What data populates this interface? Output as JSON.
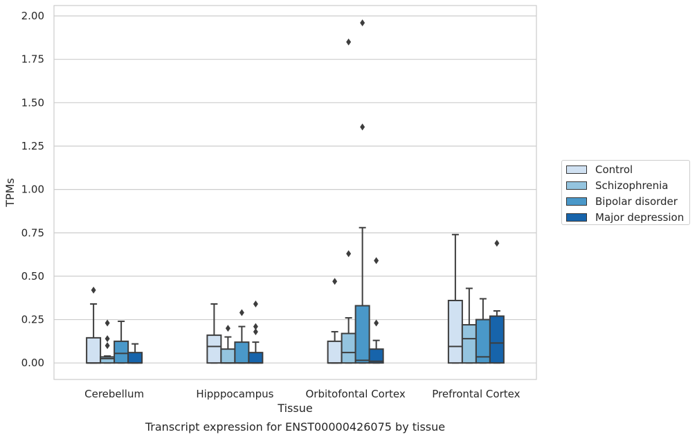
{
  "chart_data": {
    "type": "box",
    "title": "Transcript expression for ENST00000426075 by tissue",
    "xlabel": "Tissue",
    "ylabel": "TPMs",
    "ylim": [
      -0.095,
      2.06
    ],
    "yticks": [
      "0.00",
      "0.25",
      "0.50",
      "0.75",
      "1.00",
      "1.25",
      "1.50",
      "1.75",
      "2.00"
    ],
    "grid": true,
    "legend_position": "right",
    "categories": [
      "Cerebellum",
      "Hipppocampus",
      "Orbitofontal Cortex",
      "Prefrontal Cortex"
    ],
    "series": [
      {
        "name": "Control",
        "color": "#d0e1f2",
        "boxes": [
          {
            "q1": 0,
            "median": 0.0,
            "q3": 0.145,
            "whisker_low": 0,
            "whisker_high": 0.34,
            "outliers": [
              0.42
            ]
          },
          {
            "q1": 0,
            "median": 0.095,
            "q3": 0.16,
            "whisker_low": 0,
            "whisker_high": 0.34,
            "outliers": []
          },
          {
            "q1": 0,
            "median": 0.0,
            "q3": 0.125,
            "whisker_low": 0,
            "whisker_high": 0.18,
            "outliers": [
              0.47
            ]
          },
          {
            "q1": 0,
            "median": 0.095,
            "q3": 0.36,
            "whisker_low": 0,
            "whisker_high": 0.74,
            "outliers": []
          }
        ]
      },
      {
        "name": "Schizophrenia",
        "color": "#94c4df",
        "boxes": [
          {
            "q1": 0,
            "median": 0.025,
            "q3": 0.035,
            "whisker_low": 0,
            "whisker_high": 0.04,
            "outliers": [
              0.1,
              0.14,
              0.23
            ]
          },
          {
            "q1": 0,
            "median": 0.0,
            "q3": 0.08,
            "whisker_low": 0,
            "whisker_high": 0.15,
            "outliers": [
              0.2
            ]
          },
          {
            "q1": 0,
            "median": 0.06,
            "q3": 0.17,
            "whisker_low": 0,
            "whisker_high": 0.26,
            "outliers": [
              0.63,
              1.85
            ]
          },
          {
            "q1": 0,
            "median": 0.14,
            "q3": 0.22,
            "whisker_low": 0,
            "whisker_high": 0.43,
            "outliers": []
          }
        ]
      },
      {
        "name": "Bipolar disorder",
        "color": "#4a98c9",
        "boxes": [
          {
            "q1": 0,
            "median": 0.055,
            "q3": 0.125,
            "whisker_low": 0,
            "whisker_high": 0.24,
            "outliers": []
          },
          {
            "q1": 0,
            "median": 0.0,
            "q3": 0.12,
            "whisker_low": 0,
            "whisker_high": 0.21,
            "outliers": [
              0.29
            ]
          },
          {
            "q1": 0,
            "median": 0.015,
            "q3": 0.33,
            "whisker_low": 0,
            "whisker_high": 0.78,
            "outliers": [
              1.36,
              1.96
            ]
          },
          {
            "q1": 0,
            "median": 0.035,
            "q3": 0.25,
            "whisker_low": 0,
            "whisker_high": 0.37,
            "outliers": []
          }
        ]
      },
      {
        "name": "Major depression",
        "color": "#1764ab",
        "boxes": [
          {
            "q1": 0,
            "median": 0.0,
            "q3": 0.06,
            "whisker_low": 0,
            "whisker_high": 0.11,
            "outliers": []
          },
          {
            "q1": 0,
            "median": 0.0,
            "q3": 0.06,
            "whisker_low": 0,
            "whisker_high": 0.12,
            "outliers": [
              0.18,
              0.21,
              0.34
            ]
          },
          {
            "q1": 0,
            "median": 0.01,
            "q3": 0.08,
            "whisker_low": 0,
            "whisker_high": 0.13,
            "outliers": [
              0.23,
              0.59
            ]
          },
          {
            "q1": 0,
            "median": 0.115,
            "q3": 0.27,
            "whisker_low": 0,
            "whisker_high": 0.3,
            "outliers": [
              0.69
            ]
          }
        ]
      }
    ]
  }
}
